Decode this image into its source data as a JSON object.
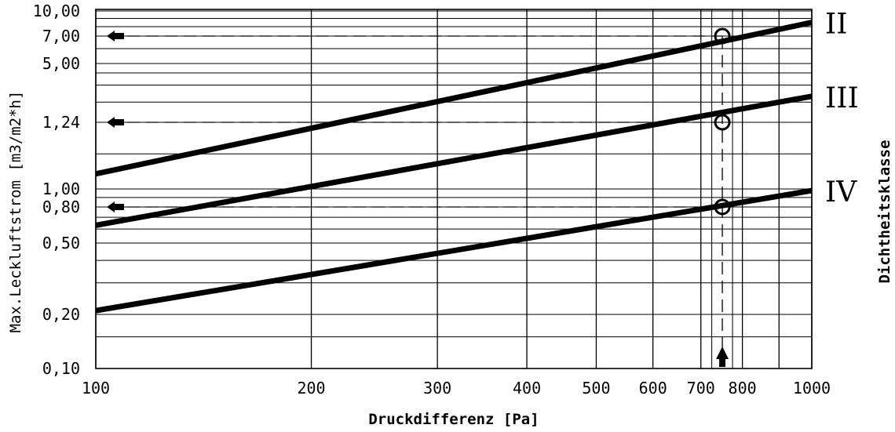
{
  "chart_data": {
    "type": "line",
    "xscale": "log",
    "yscale": "nonlinear",
    "xlabel": "Druckdifferenz [Pa]",
    "ylabel": "Max.Leckluftstrom [m3/m2*h]",
    "right_label": "Dichtheitsklasse",
    "xlim": [
      100,
      1000
    ],
    "x_ticks": [
      100,
      200,
      300,
      400,
      500,
      600,
      700,
      800,
      1000
    ],
    "x_tick_labels": [
      "100",
      "200",
      "300",
      "400",
      "500",
      "600",
      "700",
      "800",
      "1000"
    ],
    "y_ticks": [
      0.1,
      0.2,
      0.5,
      0.8,
      1.0,
      1.24,
      5.0,
      7.0,
      10.0
    ],
    "y_tick_labels": [
      "0,10",
      "0,20",
      "0,50",
      "0,80",
      "1,00",
      "1,24",
      "5,00",
      "7,00",
      "10,00"
    ],
    "grid": true,
    "series": [
      {
        "name": "II",
        "x": [
          100,
          1000
        ],
        "y": [
          1.05,
          8.5
        ]
      },
      {
        "name": "III",
        "x": [
          100,
          1000
        ],
        "y": [
          0.63,
          2.3
        ]
      },
      {
        "name": "IV",
        "x": [
          100,
          1000
        ],
        "y": [
          0.21,
          0.98
        ]
      }
    ],
    "reference": {
      "x": 750,
      "points": [
        {
          "series": "II",
          "y": 7.0,
          "label": "7,00"
        },
        {
          "series": "III",
          "y": 1.24,
          "label": "1,24"
        },
        {
          "series": "IV",
          "y": 0.8,
          "label": "0,80"
        }
      ]
    }
  }
}
